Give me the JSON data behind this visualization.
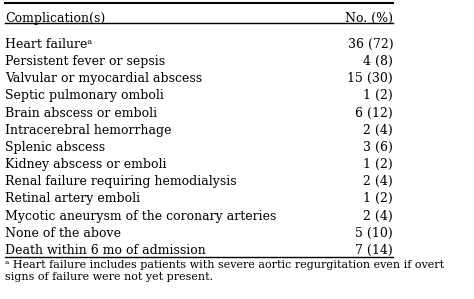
{
  "header": [
    "Complication(s)",
    "No. (%)"
  ],
  "rows": [
    [
      "Heart failureᵃ",
      "36 (72)"
    ],
    [
      "Persistent fever or sepsis",
      "4 (8)"
    ],
    [
      "Valvular or myocardial abscess",
      "15 (30)"
    ],
    [
      "Septic pulmonary omboli",
      "1 (2)"
    ],
    [
      "Brain abscess or emboli",
      "6 (12)"
    ],
    [
      "Intracerebral hemorrhage",
      "2 (4)"
    ],
    [
      "Splenic abscess",
      "3 (6)"
    ],
    [
      "Kidney abscess or emboli",
      "1 (2)"
    ],
    [
      "Renal failure requiring hemodialysis",
      "2 (4)"
    ],
    [
      "Retinal artery emboli",
      "1 (2)"
    ],
    [
      "Mycotic aneurysm of the coronary arteries",
      "2 (4)"
    ],
    [
      "None of the above",
      "5 (10)"
    ],
    [
      "Death within 6 mo of admission",
      "7 (14)"
    ]
  ],
  "footnote": "ᵃ Heart failure includes patients with severe aortic regurgitation even if overt\nsigns of failure were not yet present.",
  "bg_color": "#ffffff",
  "text_color": "#000000",
  "header_fontsize": 9,
  "row_fontsize": 9,
  "footnote_fontsize": 8
}
